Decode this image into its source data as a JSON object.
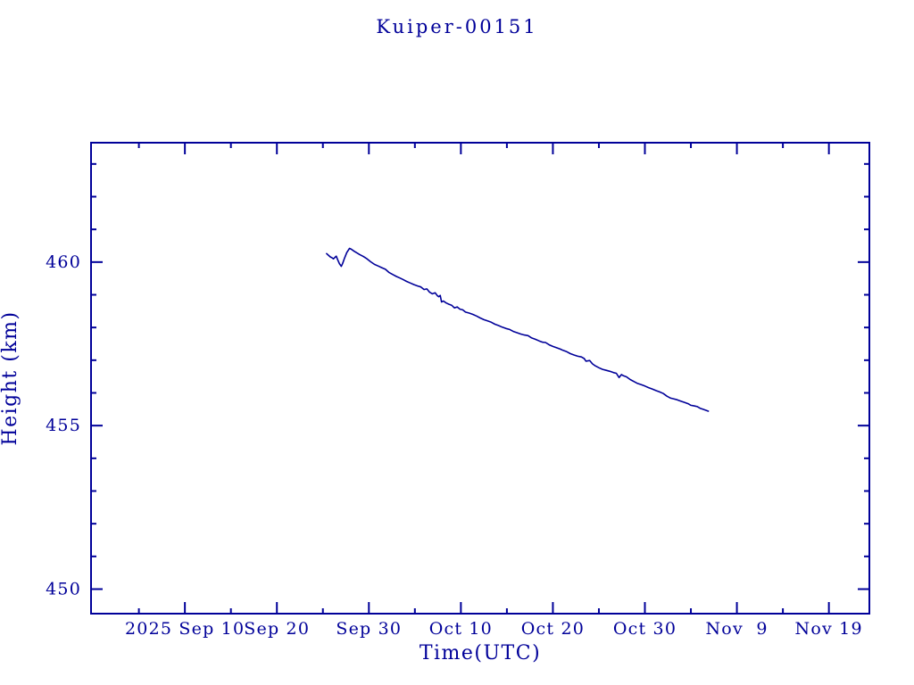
{
  "chart_data": {
    "type": "line",
    "title": "Kuiper-00151",
    "xlabel": "Time(UTC)",
    "ylabel": "Height (km)",
    "x_unit": "days since 2025 Sep 10 00:00 UTC",
    "x_range": [
      -10.2,
      74.4
    ],
    "y_range": [
      449.25,
      463.65
    ],
    "grid": false,
    "legend": false,
    "colors": {
      "line": "#000099",
      "axis": "#000099",
      "text": "#000099",
      "background": "#ffffff"
    },
    "x_major_ticks": [
      {
        "day": 0,
        "label": "2025 Sep 10"
      },
      {
        "day": 10,
        "label": "Sep 20"
      },
      {
        "day": 20,
        "label": "Sep 30"
      },
      {
        "day": 30,
        "label": "Oct 10"
      },
      {
        "day": 40,
        "label": "Oct 20"
      },
      {
        "day": 50,
        "label": "Oct 30"
      },
      {
        "day": 60,
        "label": "Nov  9"
      },
      {
        "day": 70,
        "label": "Nov 19"
      }
    ],
    "x_minor_tick_days": [
      -5,
      5,
      15,
      25,
      35,
      45,
      55,
      65
    ],
    "y_major_ticks": [
      {
        "km": 450,
        "label": "450"
      },
      {
        "km": 455,
        "label": "455"
      },
      {
        "km": 460,
        "label": "460"
      }
    ],
    "y_minor_tick_kms": [
      451,
      452,
      453,
      454,
      456,
      457,
      458,
      459,
      461,
      462,
      463
    ],
    "series": [
      {
        "name": "Kuiper-00151",
        "points": [
          [
            15.4,
            460.26
          ],
          [
            15.6,
            460.21
          ],
          [
            15.8,
            460.16
          ],
          [
            16.0,
            460.13
          ],
          [
            16.15,
            460.1
          ],
          [
            16.3,
            460.14
          ],
          [
            16.45,
            460.18
          ],
          [
            16.6,
            460.08
          ],
          [
            16.8,
            459.95
          ],
          [
            17.0,
            459.87
          ],
          [
            17.15,
            459.96
          ],
          [
            17.35,
            460.12
          ],
          [
            17.6,
            460.29
          ],
          [
            17.9,
            460.42
          ],
          [
            18.1,
            460.39
          ],
          [
            18.4,
            460.33
          ],
          [
            18.7,
            460.28
          ],
          [
            19.0,
            460.23
          ],
          [
            19.4,
            460.17
          ],
          [
            19.8,
            460.1
          ],
          [
            20.2,
            460.01
          ],
          [
            20.6,
            459.93
          ],
          [
            21.0,
            459.88
          ],
          [
            21.4,
            459.83
          ],
          [
            21.8,
            459.78
          ],
          [
            22.2,
            459.68
          ],
          [
            22.6,
            459.62
          ],
          [
            23.0,
            459.56
          ],
          [
            23.4,
            459.51
          ],
          [
            23.7,
            459.47
          ],
          [
            24.1,
            459.41
          ],
          [
            24.5,
            459.36
          ],
          [
            24.9,
            459.31
          ],
          [
            25.3,
            459.27
          ],
          [
            25.65,
            459.24
          ],
          [
            26.0,
            459.16
          ],
          [
            26.3,
            459.18
          ],
          [
            26.6,
            459.08
          ],
          [
            26.9,
            459.03
          ],
          [
            27.2,
            459.06
          ],
          [
            27.45,
            458.97
          ],
          [
            27.6,
            458.94
          ],
          [
            27.75,
            458.98
          ],
          [
            27.9,
            458.78
          ],
          [
            28.1,
            458.81
          ],
          [
            28.4,
            458.75
          ],
          [
            28.7,
            458.71
          ],
          [
            29.0,
            458.68
          ],
          [
            29.3,
            458.6
          ],
          [
            29.6,
            458.63
          ],
          [
            29.9,
            458.56
          ],
          [
            30.2,
            458.54
          ],
          [
            30.5,
            458.47
          ],
          [
            30.9,
            458.44
          ],
          [
            31.3,
            458.4
          ],
          [
            31.7,
            458.35
          ],
          [
            32.1,
            458.29
          ],
          [
            32.5,
            458.24
          ],
          [
            32.9,
            458.2
          ],
          [
            33.3,
            458.16
          ],
          [
            33.7,
            458.1
          ],
          [
            34.1,
            458.06
          ],
          [
            34.5,
            458.01
          ],
          [
            34.9,
            457.97
          ],
          [
            35.3,
            457.94
          ],
          [
            35.7,
            457.88
          ],
          [
            36.1,
            457.84
          ],
          [
            36.5,
            457.8
          ],
          [
            36.9,
            457.77
          ],
          [
            37.3,
            457.75
          ],
          [
            37.7,
            457.68
          ],
          [
            38.1,
            457.64
          ],
          [
            38.5,
            457.59
          ],
          [
            38.9,
            457.55
          ],
          [
            39.2,
            457.54
          ],
          [
            39.6,
            457.47
          ],
          [
            40.0,
            457.42
          ],
          [
            40.4,
            457.38
          ],
          [
            40.8,
            457.34
          ],
          [
            41.1,
            457.3
          ],
          [
            41.5,
            457.26
          ],
          [
            41.9,
            457.2
          ],
          [
            42.3,
            457.16
          ],
          [
            42.7,
            457.12
          ],
          [
            43.1,
            457.1
          ],
          [
            43.4,
            457.05
          ],
          [
            43.6,
            456.97
          ],
          [
            44.0,
            456.99
          ],
          [
            44.3,
            456.89
          ],
          [
            44.6,
            456.83
          ],
          [
            45.0,
            456.77
          ],
          [
            45.4,
            456.72
          ],
          [
            45.8,
            456.69
          ],
          [
            46.2,
            456.66
          ],
          [
            46.6,
            456.62
          ],
          [
            46.9,
            456.6
          ],
          [
            47.2,
            456.47
          ],
          [
            47.45,
            456.56
          ],
          [
            47.7,
            456.52
          ],
          [
            48.0,
            456.49
          ],
          [
            48.4,
            456.41
          ],
          [
            48.8,
            456.35
          ],
          [
            49.2,
            456.29
          ],
          [
            49.6,
            456.25
          ],
          [
            50.0,
            456.21
          ],
          [
            50.4,
            456.16
          ],
          [
            50.8,
            456.12
          ],
          [
            51.2,
            456.07
          ],
          [
            51.6,
            456.03
          ],
          [
            52.0,
            455.98
          ],
          [
            52.4,
            455.9
          ],
          [
            52.8,
            455.84
          ],
          [
            53.1,
            455.82
          ],
          [
            53.5,
            455.79
          ],
          [
            53.9,
            455.75
          ],
          [
            54.3,
            455.71
          ],
          [
            54.7,
            455.67
          ],
          [
            55.0,
            455.62
          ],
          [
            55.4,
            455.6
          ],
          [
            55.7,
            455.58
          ],
          [
            56.0,
            455.53
          ],
          [
            56.3,
            455.5
          ],
          [
            56.6,
            455.47
          ],
          [
            56.9,
            455.44
          ]
        ]
      }
    ]
  }
}
